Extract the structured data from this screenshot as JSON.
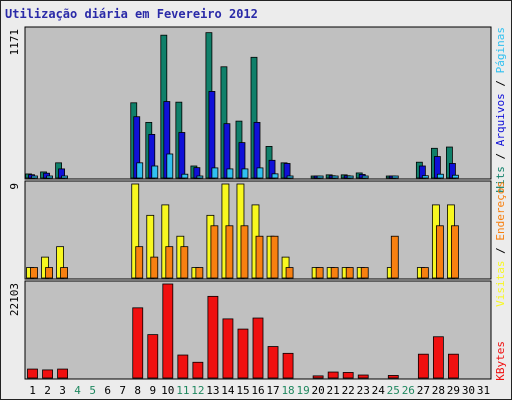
{
  "chart_data": {
    "type": "bar",
    "title": "Utilização diária em Fevereiro 2012",
    "x": [
      "1",
      "2",
      "3",
      "4",
      "5",
      "6",
      "7",
      "8",
      "9",
      "10",
      "11",
      "12",
      "13",
      "14",
      "15",
      "16",
      "17",
      "18",
      "19",
      "20",
      "21",
      "22",
      "23",
      "24",
      "25",
      "26",
      "27",
      "28",
      "29",
      "30",
      "31"
    ],
    "weekend_days": [
      "4",
      "5",
      "11",
      "12",
      "18",
      "19",
      "25",
      "26"
    ],
    "colors": {
      "hits": "#10806a",
      "arquivos": "#1010d8",
      "paginas": "#30c0f0",
      "visitas": "#f8f820",
      "enderecos": "#f88010",
      "kbytes": "#f01010",
      "weekday_tick": "#000000",
      "weekend_tick": "#208860",
      "title": "#2a2aa8",
      "panel_bg": "#c0c0c0"
    },
    "panels": [
      {
        "ytick": "1171",
        "ylim": [
          0,
          1171
        ],
        "series": [
          {
            "key": "hits",
            "values": [
              32,
              48,
              120,
              0,
              0,
              0,
              0,
              595,
              440,
              1130,
              600,
              95,
              1150,
              880,
              450,
              955,
              250,
              120,
              0,
              14,
              25,
              25,
              40,
              0,
              15,
              0,
              125,
              235,
              245,
              0,
              0
            ]
          },
          {
            "key": "arquivos",
            "values": [
              26,
              38,
              72,
              0,
              0,
              0,
              0,
              485,
              345,
              605,
              360,
              82,
              685,
              430,
              280,
              440,
              140,
              115,
              0,
              10,
              18,
              18,
              28,
              0,
              10,
              0,
              95,
              170,
              115,
              0,
              0
            ]
          },
          {
            "key": "paginas",
            "values": [
              12,
              15,
              16,
              0,
              0,
              0,
              0,
              120,
              95,
              190,
              30,
              12,
              80,
              72,
              72,
              80,
              33,
              16,
              0,
              5,
              6,
              6,
              8,
              0,
              4,
              0,
              18,
              30,
              22,
              0,
              0
            ]
          }
        ]
      },
      {
        "ytick": "9",
        "ylim": [
          0,
          9
        ],
        "series": [
          {
            "key": "visitas",
            "values": [
              1,
              2,
              3,
              0,
              0,
              0,
              0,
              9,
              6,
              7,
              4,
              1,
              6,
              9,
              9,
              7,
              4,
              2,
              0,
              1,
              1,
              1,
              1,
              0,
              1,
              0,
              1,
              7,
              7,
              0,
              0
            ]
          },
          {
            "key": "enderecos",
            "values": [
              1,
              1,
              1,
              0,
              0,
              0,
              0,
              3,
              2,
              3,
              3,
              1,
              5,
              5,
              5,
              4,
              4,
              1,
              0,
              1,
              1,
              1,
              1,
              0,
              4,
              0,
              1,
              5,
              5,
              0,
              0
            ]
          }
        ]
      },
      {
        "ytick": "22103",
        "ylim": [
          0,
          22103
        ],
        "series": [
          {
            "key": "kbytes",
            "values": [
              2100,
              1900,
              2100,
              0,
              0,
              0,
              0,
              16500,
              10200,
              22103,
              5400,
              3700,
              19200,
              13900,
              11500,
              14100,
              7400,
              5800,
              0,
              500,
              1400,
              1300,
              700,
              0,
              600,
              0,
              5600,
              9700,
              5600,
              0,
              0
            ]
          }
        ]
      }
    ],
    "legend": {
      "top": [
        {
          "text": "Hits",
          "key": "hits"
        },
        {
          "text": " / ",
          "key": "sep"
        },
        {
          "text": "Arquivos",
          "key": "arquivos"
        },
        {
          "text": " / ",
          "key": "sep"
        },
        {
          "text": "Páginas",
          "key": "paginas"
        }
      ],
      "middle": [
        {
          "text": "Visitas",
          "key": "visitas"
        },
        {
          "text": " / ",
          "key": "sep"
        },
        {
          "text": "Endereços",
          "key": "enderecos"
        }
      ],
      "bottom": [
        {
          "text": "KBytes",
          "key": "kbytes"
        }
      ]
    }
  }
}
